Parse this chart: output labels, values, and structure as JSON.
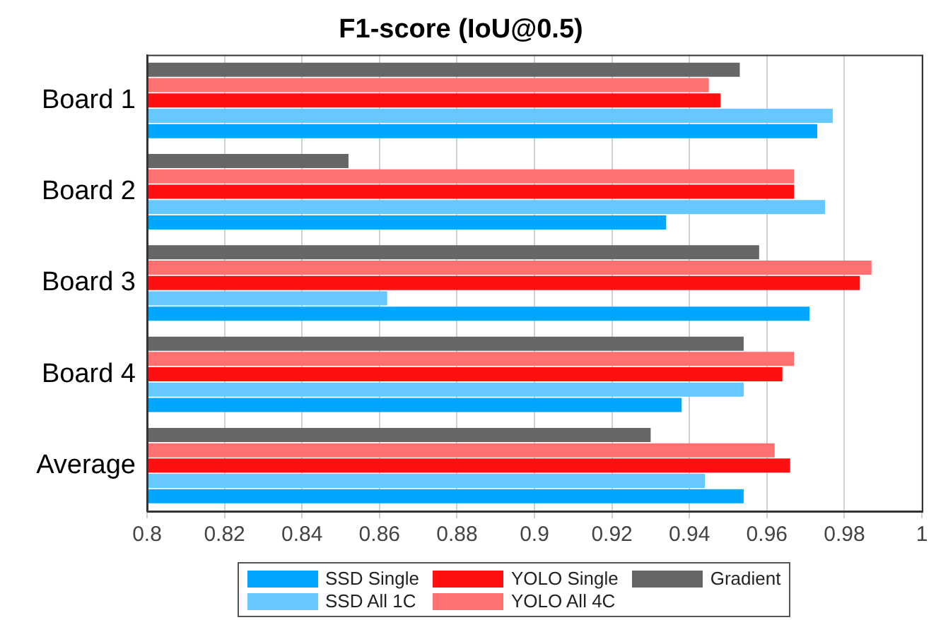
{
  "chart_data": {
    "type": "bar",
    "orientation": "horizontal",
    "title": "F1-score (IoU@0.5)",
    "categories": [
      "Board 1",
      "Board 2",
      "Board 3",
      "Board 4",
      "Average"
    ],
    "series": [
      {
        "name": "SSD Single",
        "color": "#00a6ff",
        "values": [
          0.973,
          0.934,
          0.971,
          0.938,
          0.954
        ]
      },
      {
        "name": "SSD All 1C",
        "color": "#66c8ff",
        "values": [
          0.977,
          0.975,
          0.862,
          0.954,
          0.944
        ]
      },
      {
        "name": "YOLO Single",
        "color": "#ff1010",
        "values": [
          0.948,
          0.967,
          0.984,
          0.964,
          0.966
        ]
      },
      {
        "name": "YOLO All 4C",
        "color": "#ff7070",
        "values": [
          0.945,
          0.967,
          0.987,
          0.967,
          0.962
        ]
      },
      {
        "name": "Gradient",
        "color": "#666666",
        "values": [
          0.953,
          0.852,
          0.958,
          0.954,
          0.93
        ]
      }
    ],
    "xlim": [
      0.8,
      1
    ],
    "xticks": [
      0.8,
      0.82,
      0.84,
      0.86,
      0.88,
      0.9,
      0.92,
      0.94,
      0.96,
      0.98,
      1
    ],
    "grid": "x",
    "legend": "bottom"
  }
}
